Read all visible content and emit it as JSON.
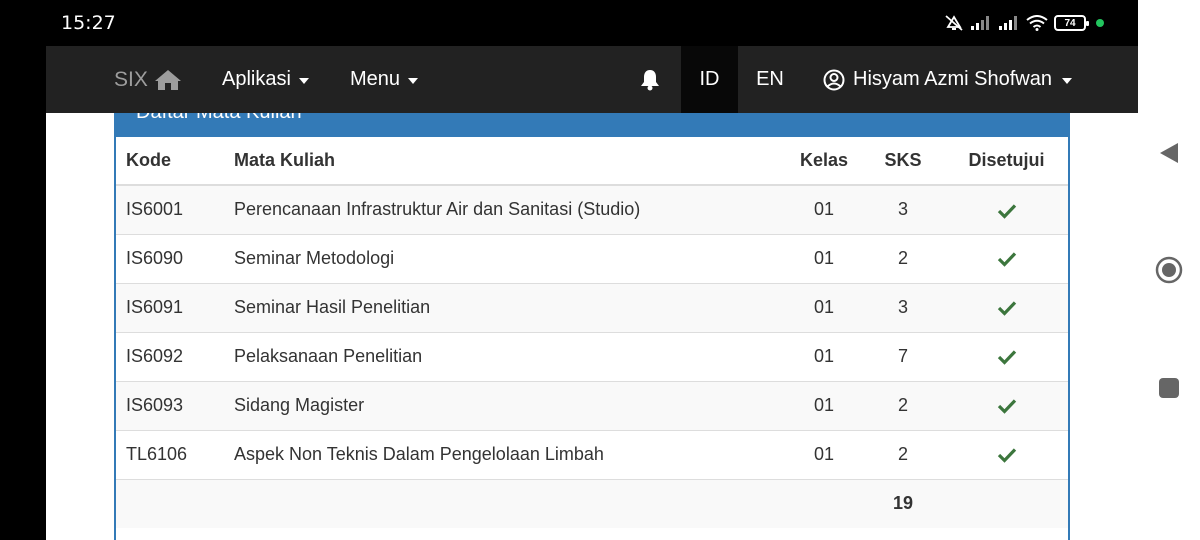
{
  "status_bar": {
    "time": "15:27",
    "battery_level": "74",
    "icons": [
      "mute-icon",
      "signal-icon",
      "signal-icon",
      "wifi-icon",
      "battery-icon"
    ]
  },
  "navbar": {
    "brand": "SIX",
    "brand_icon": "home-icon",
    "menu_aplikasi": "Aplikasi",
    "menu_menu": "Menu",
    "bell_icon": "bell-icon",
    "lang_id": "ID",
    "lang_en": "EN",
    "user_name": "Hisyam Azmi Shofwan",
    "user_icon": "user-circle-icon"
  },
  "panel": {
    "title": "Daftar Mata Kuliah"
  },
  "table": {
    "headers": {
      "kode": "Kode",
      "mata_kuliah": "Mata Kuliah",
      "kelas": "Kelas",
      "sks": "SKS",
      "disetujui": "Disetujui"
    },
    "rows": [
      {
        "kode": "IS6001",
        "mata_kuliah": "Perencanaan Infrastruktur Air dan Sanitasi (Studio)",
        "kelas": "01",
        "sks": "3",
        "disetujui": true
      },
      {
        "kode": "IS6090",
        "mata_kuliah": "Seminar Metodologi",
        "kelas": "01",
        "sks": "2",
        "disetujui": true
      },
      {
        "kode": "IS6091",
        "mata_kuliah": "Seminar Hasil Penelitian",
        "kelas": "01",
        "sks": "3",
        "disetujui": true
      },
      {
        "kode": "IS6092",
        "mata_kuliah": "Pelaksanaan Penelitian",
        "kelas": "01",
        "sks": "7",
        "disetujui": true
      },
      {
        "kode": "IS6093",
        "mata_kuliah": "Sidang Magister",
        "kelas": "01",
        "sks": "2",
        "disetujui": true
      },
      {
        "kode": "TL6106",
        "mata_kuliah": "Aspek Non Teknis Dalam Pengelolaan Limbah",
        "kelas": "01",
        "sks": "2",
        "disetujui": true
      }
    ],
    "total_sks": "19"
  },
  "colors": {
    "navbar_bg": "#222222",
    "panel_primary": "#337ab7",
    "check_green": "#3c763d"
  }
}
